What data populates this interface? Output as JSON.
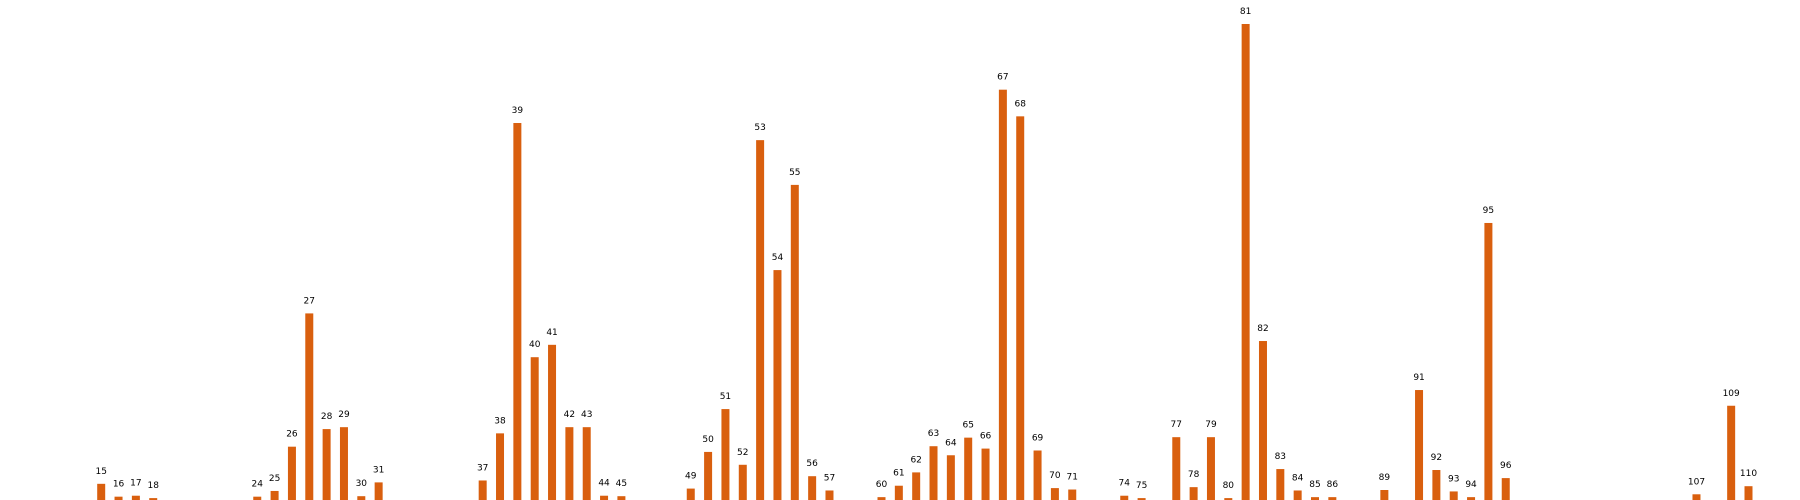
{
  "chart_data": {
    "type": "bar",
    "title": "",
    "xlabel": "",
    "ylabel": "",
    "grid": false,
    "legend": "none",
    "color": "#d95f0e",
    "ylim": [
      0,
      100
    ],
    "xlim": [
      10,
      112
    ],
    "categories": [
      15,
      16,
      17,
      18,
      24,
      25,
      26,
      27,
      28,
      29,
      30,
      31,
      37,
      38,
      39,
      40,
      41,
      42,
      43,
      44,
      45,
      49,
      50,
      51,
      52,
      53,
      54,
      55,
      56,
      57,
      60,
      61,
      62,
      63,
      64,
      65,
      66,
      67,
      68,
      69,
      70,
      71,
      74,
      75,
      77,
      78,
      79,
      80,
      81,
      82,
      83,
      84,
      85,
      86,
      89,
      91,
      92,
      93,
      94,
      95,
      96,
      107,
      109,
      110
    ],
    "labels": [
      "15",
      "16",
      "17",
      "18",
      "24",
      "25",
      "26",
      "27",
      "28",
      "29",
      "30",
      "31",
      "37",
      "38",
      "39",
      "40",
      "41",
      "42",
      "43",
      "44",
      "45",
      "49",
      "50",
      "51",
      "52",
      "53",
      "54",
      "55",
      "56",
      "57",
      "60",
      "61",
      "62",
      "63",
      "64",
      "65",
      "66",
      "67",
      "68",
      "69",
      "70",
      "71",
      "74",
      "75",
      "77",
      "78",
      "79",
      "80",
      "81",
      "82",
      "83",
      "84",
      "85",
      "86",
      "89",
      "91",
      "92",
      "93",
      "94",
      "95",
      "96",
      "107",
      "109",
      "110"
    ],
    "values": [
      3.4,
      0.7,
      0.9,
      0.4,
      0.7,
      1.9,
      11.2,
      39.2,
      14.9,
      15.3,
      0.8,
      3.7,
      4.1,
      14.0,
      79.2,
      30.0,
      32.6,
      15.3,
      15.3,
      0.9,
      0.8,
      2.4,
      10.1,
      19.1,
      7.4,
      75.6,
      48.3,
      66.2,
      5.0,
      2.0,
      0.6,
      3.0,
      5.8,
      11.3,
      9.4,
      13.1,
      10.8,
      86.2,
      80.6,
      10.4,
      2.5,
      2.2,
      0.9,
      0.4,
      13.2,
      2.7,
      13.2,
      0.4,
      100.0,
      33.4,
      6.5,
      2.0,
      0.6,
      0.6,
      2.1,
      23.1,
      6.3,
      1.8,
      0.6,
      58.2,
      4.6,
      1.2,
      19.8,
      2.9
    ]
  }
}
